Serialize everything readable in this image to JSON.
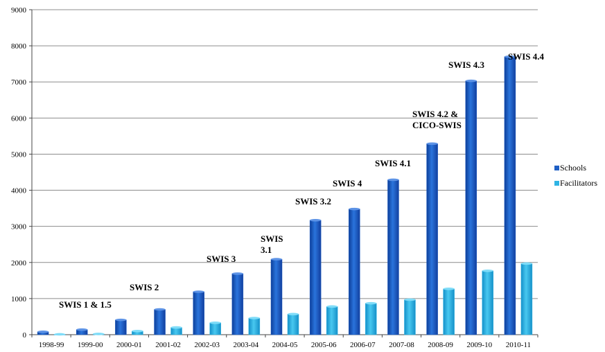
{
  "chart_data": {
    "type": "bar",
    "categories": [
      "1998-99",
      "1999-00",
      "2000-01",
      "2001-02",
      "2002-03",
      "2003-04",
      "2004-05",
      "2005-06",
      "2006-07",
      "2007-08",
      "2008-09",
      "2009-10",
      "2010-11"
    ],
    "series": [
      {
        "name": "Schools",
        "color": "#1f5fc4",
        "values": [
          80,
          140,
          410,
          700,
          1190,
          1690,
          2090,
          3170,
          3480,
          4290,
          5290,
          7030,
          7700
        ]
      },
      {
        "name": "Facilitators",
        "color": "#2fb4e4",
        "values": [
          10,
          20,
          100,
          200,
          330,
          460,
          570,
          780,
          870,
          970,
          1270,
          1770,
          1970
        ]
      }
    ],
    "ylim": [
      0,
      9000
    ],
    "yticks": [
      0,
      1000,
      2000,
      3000,
      4000,
      5000,
      6000,
      7000,
      8000,
      9000
    ],
    "grid": true,
    "legend_position": "right",
    "title": "",
    "xlabel": "",
    "ylabel": "",
    "annotations": [
      {
        "category": "1998-99",
        "lines": [
          "SWIS 1 & 1.5"
        ]
      },
      {
        "category": "2000-01",
        "lines": [
          "SWIS 2"
        ]
      },
      {
        "category": "2002-03",
        "lines": [
          "SWIS 3"
        ]
      },
      {
        "category": "2004-05",
        "lines": [
          "SWIS",
          "3.1"
        ]
      },
      {
        "category": "2005-06",
        "lines": [
          "SWIS 3.2"
        ]
      },
      {
        "category": "2006-07",
        "lines": [
          "SWIS 4"
        ]
      },
      {
        "category": "2007-08",
        "lines": [
          "SWIS 4.1"
        ]
      },
      {
        "category": "2008-09",
        "lines": [
          "SWIS 4.2  &",
          "CICO-SWIS"
        ]
      },
      {
        "category": "2009-10",
        "lines": [
          "SWIS 4.3"
        ]
      },
      {
        "category": "2010-11",
        "lines": [
          "SWIS 4.4"
        ]
      }
    ]
  }
}
